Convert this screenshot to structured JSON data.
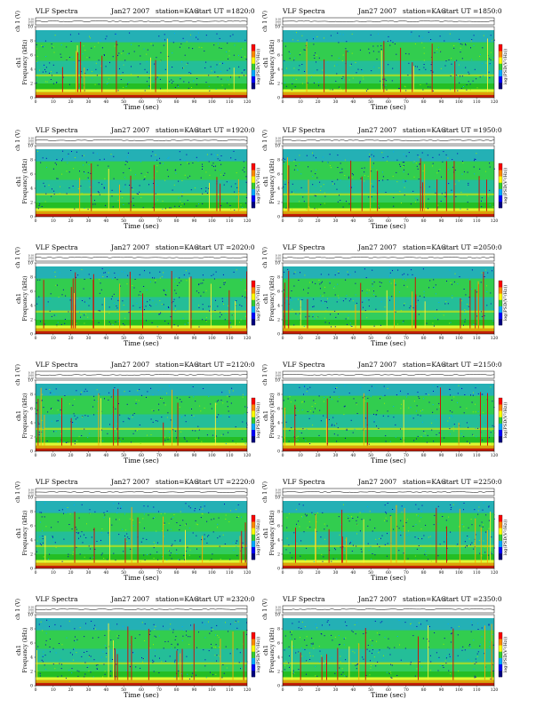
{
  "title_prefix": "VLF Spectra",
  "date": "Jan27 2007",
  "station_text": "station=KAG",
  "start_prefix": "start UT =",
  "amp_label": "ch 1 (V)",
  "freq_label": "Frequency (kHz)",
  "ch_label": "ch1",
  "time_label": "Time (sec)",
  "colorbar_label": "log(PSD(V²/Hz))",
  "colors": {
    "background_green": "#33cc33",
    "hot_red": "#dd0000",
    "cold_blue": "#0000bb"
  },
  "chart_data": [
    {
      "type": "heatmap",
      "start_ut": "1820:0",
      "xlim": [
        0,
        120
      ],
      "ylim": [
        0,
        10
      ],
      "xticks": [
        0,
        10,
        20,
        30,
        40,
        50,
        60,
        70,
        80,
        90,
        100,
        110,
        120
      ],
      "yticks": [
        0,
        2,
        4,
        6,
        8,
        10
      ],
      "amp_ticks": [
        "0.10",
        "0.00",
        "-0.10"
      ]
    },
    {
      "type": "heatmap",
      "start_ut": "1850:0",
      "xlim": [
        0,
        120
      ],
      "ylim": [
        0,
        10
      ],
      "xticks": [
        0,
        10,
        20,
        30,
        40,
        50,
        60,
        70,
        80,
        90,
        100,
        110,
        120
      ],
      "yticks": [
        0,
        2,
        4,
        6,
        8,
        10
      ],
      "amp_ticks": [
        "0.10",
        "0.00",
        "-0.10"
      ]
    },
    {
      "type": "heatmap",
      "start_ut": "1920:0",
      "xlim": [
        0,
        120
      ],
      "ylim": [
        0,
        10
      ],
      "xticks": [
        0,
        10,
        20,
        30,
        40,
        50,
        60,
        70,
        80,
        90,
        100,
        110,
        120
      ],
      "yticks": [
        0,
        2,
        4,
        6,
        8,
        10
      ],
      "amp_ticks": [
        "0.10",
        "0.00",
        "-0.10"
      ]
    },
    {
      "type": "heatmap",
      "start_ut": "1950:0",
      "xlim": [
        0,
        120
      ],
      "ylim": [
        0,
        10
      ],
      "xticks": [
        0,
        10,
        20,
        30,
        40,
        50,
        60,
        70,
        80,
        90,
        100,
        110,
        120
      ],
      "yticks": [
        0,
        2,
        4,
        6,
        8,
        10
      ],
      "amp_ticks": [
        "0.10",
        "0.00",
        "-0.10"
      ]
    },
    {
      "type": "heatmap",
      "start_ut": "2020:0",
      "xlim": [
        0,
        120
      ],
      "ylim": [
        0,
        10
      ],
      "xticks": [
        0,
        10,
        20,
        30,
        40,
        50,
        60,
        70,
        80,
        90,
        100,
        110,
        120
      ],
      "yticks": [
        0,
        2,
        4,
        6,
        8,
        10
      ],
      "amp_ticks": [
        "0.10",
        "0.00",
        "-0.10"
      ]
    },
    {
      "type": "heatmap",
      "start_ut": "2050:0",
      "xlim": [
        0,
        120
      ],
      "ylim": [
        0,
        10
      ],
      "xticks": [
        0,
        10,
        20,
        30,
        40,
        50,
        60,
        70,
        80,
        90,
        100,
        110,
        120
      ],
      "yticks": [
        0,
        2,
        4,
        6,
        8,
        10
      ],
      "amp_ticks": [
        "0.10",
        "0.00",
        "-0.10"
      ]
    },
    {
      "type": "heatmap",
      "start_ut": "2120:0",
      "xlim": [
        0,
        120
      ],
      "ylim": [
        0,
        10
      ],
      "xticks": [
        0,
        10,
        20,
        30,
        40,
        50,
        60,
        70,
        80,
        90,
        100,
        110,
        120
      ],
      "yticks": [
        0,
        2,
        4,
        6,
        8,
        10
      ],
      "amp_ticks": [
        "0.10",
        "0.00",
        "-0.10"
      ]
    },
    {
      "type": "heatmap",
      "start_ut": "2150:0",
      "xlim": [
        0,
        120
      ],
      "ylim": [
        0,
        10
      ],
      "xticks": [
        0,
        10,
        20,
        30,
        40,
        50,
        60,
        70,
        80,
        90,
        100,
        110,
        120
      ],
      "yticks": [
        0,
        2,
        4,
        6,
        8,
        10
      ],
      "amp_ticks": [
        "0.10",
        "0.00",
        "-0.10"
      ]
    },
    {
      "type": "heatmap",
      "start_ut": "2220:0",
      "xlim": [
        0,
        120
      ],
      "ylim": [
        0,
        10
      ],
      "xticks": [
        0,
        10,
        20,
        30,
        40,
        50,
        60,
        70,
        80,
        90,
        100,
        110,
        120
      ],
      "yticks": [
        0,
        2,
        4,
        6,
        8,
        10
      ],
      "amp_ticks": [
        "0.10",
        "0.00",
        "-0.10"
      ]
    },
    {
      "type": "heatmap",
      "start_ut": "2250:0",
      "xlim": [
        0,
        120
      ],
      "ylim": [
        0,
        10
      ],
      "xticks": [
        0,
        10,
        20,
        30,
        40,
        50,
        60,
        70,
        80,
        90,
        100,
        110,
        120
      ],
      "yticks": [
        0,
        2,
        4,
        6,
        8,
        10
      ],
      "amp_ticks": [
        "0.10",
        "0.00",
        "-0.10"
      ]
    },
    {
      "type": "heatmap",
      "start_ut": "2320:0",
      "xlim": [
        0,
        120
      ],
      "ylim": [
        0,
        10
      ],
      "xticks": [
        0,
        10,
        20,
        30,
        40,
        50,
        60,
        70,
        80,
        90,
        100,
        110,
        120
      ],
      "yticks": [
        0,
        2,
        4,
        6,
        8,
        10
      ],
      "amp_ticks": [
        "0.10",
        "0.00",
        "-0.10"
      ]
    },
    {
      "type": "heatmap",
      "start_ut": "2350:0",
      "xlim": [
        0,
        120
      ],
      "ylim": [
        0,
        10
      ],
      "xticks": [
        0,
        10,
        20,
        30,
        40,
        50,
        60,
        70,
        80,
        90,
        100,
        110,
        120
      ],
      "yticks": [
        0,
        2,
        4,
        6,
        8,
        10
      ],
      "amp_ticks": [
        "0.10",
        "0.00",
        "-0.10"
      ]
    }
  ]
}
